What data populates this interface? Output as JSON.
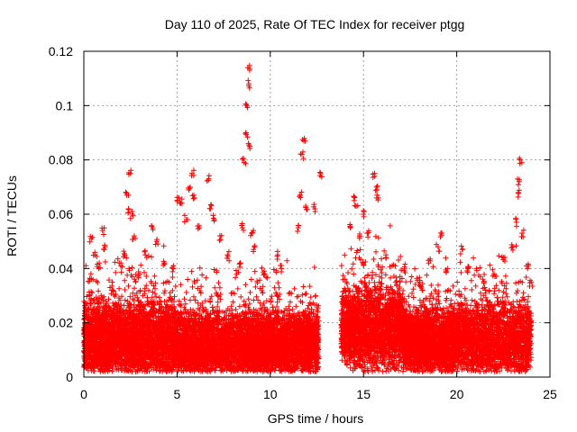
{
  "chart_data": {
    "type": "scatter",
    "title": "Day 110 of 2025, Rate Of TEC Index for receiver ptgg",
    "xlabel": "GPS time / hours",
    "ylabel": "ROTI / TECUs",
    "xlim": [
      0,
      25
    ],
    "ylim": [
      0,
      0.12
    ],
    "xticks": [
      "0",
      "5",
      "10",
      "15",
      "20",
      "25"
    ],
    "yticks": [
      "0",
      "0.02",
      "0.04",
      "0.06",
      "0.08",
      "0.1",
      "0.12"
    ],
    "grid": true,
    "marker": "+",
    "color": "#ff0000",
    "data_gap_hours": [
      12.6,
      13.8
    ],
    "series": [
      {
        "points": [
          [
            0.3,
            0.03
          ],
          [
            0.4,
            0.051
          ],
          [
            0.6,
            0.045
          ],
          [
            0.8,
            0.04
          ],
          [
            1.0,
            0.054
          ],
          [
            1.1,
            0.047
          ],
          [
            1.5,
            0.032
          ],
          [
            1.9,
            0.042
          ],
          [
            2.2,
            0.045
          ],
          [
            2.3,
            0.067
          ],
          [
            2.4,
            0.062
          ],
          [
            2.5,
            0.075
          ],
          [
            2.6,
            0.06
          ],
          [
            2.7,
            0.052
          ],
          [
            3.0,
            0.038
          ],
          [
            3.3,
            0.045
          ],
          [
            3.7,
            0.055
          ],
          [
            3.9,
            0.05
          ],
          [
            4.3,
            0.042
          ],
          [
            4.8,
            0.04
          ],
          [
            5.1,
            0.066
          ],
          [
            5.2,
            0.064
          ],
          [
            5.5,
            0.058
          ],
          [
            5.7,
            0.07
          ],
          [
            5.8,
            0.075
          ],
          [
            5.9,
            0.067
          ],
          [
            6.2,
            0.055
          ],
          [
            6.7,
            0.073
          ],
          [
            6.8,
            0.062
          ],
          [
            7.0,
            0.058
          ],
          [
            7.3,
            0.052
          ],
          [
            7.7,
            0.045
          ],
          [
            8.2,
            0.038
          ],
          [
            8.4,
            0.042
          ],
          [
            8.5,
            0.055
          ],
          [
            8.6,
            0.079
          ],
          [
            8.7,
            0.09
          ],
          [
            8.75,
            0.1
          ],
          [
            8.8,
            0.114
          ],
          [
            8.85,
            0.108
          ],
          [
            8.9,
            0.085
          ],
          [
            9.0,
            0.053
          ],
          [
            9.1,
            0.047
          ],
          [
            9.7,
            0.038
          ],
          [
            10.4,
            0.045
          ],
          [
            10.6,
            0.04
          ],
          [
            11.5,
            0.055
          ],
          [
            11.6,
            0.067
          ],
          [
            11.7,
            0.082
          ],
          [
            11.8,
            0.087
          ],
          [
            11.9,
            0.063
          ],
          [
            12.4,
            0.062
          ],
          [
            12.7,
            0.075
          ],
          [
            14.3,
            0.055
          ],
          [
            14.5,
            0.065
          ],
          [
            14.6,
            0.063
          ],
          [
            14.8,
            0.052
          ],
          [
            15.0,
            0.06
          ],
          [
            15.2,
            0.053
          ],
          [
            15.6,
            0.075
          ],
          [
            15.7,
            0.07
          ],
          [
            15.8,
            0.066
          ],
          [
            16.2,
            0.045
          ],
          [
            17.2,
            0.04
          ],
          [
            18.0,
            0.035
          ],
          [
            18.5,
            0.042
          ],
          [
            19.0,
            0.048
          ],
          [
            19.2,
            0.053
          ],
          [
            19.5,
            0.04
          ],
          [
            20.3,
            0.047
          ],
          [
            20.6,
            0.04
          ],
          [
            21.5,
            0.033
          ],
          [
            22.0,
            0.038
          ],
          [
            22.5,
            0.044
          ],
          [
            23.0,
            0.048
          ],
          [
            23.2,
            0.057
          ],
          [
            23.3,
            0.068
          ],
          [
            23.35,
            0.072
          ],
          [
            23.4,
            0.08
          ],
          [
            23.5,
            0.053
          ],
          [
            23.8,
            0.04
          ],
          [
            24.0,
            0.035
          ]
        ],
        "dense_bands": [
          {
            "x": [
              0.0,
              1.5
            ],
            "y_median": 0.013,
            "y_spread": 0.009
          },
          {
            "x": [
              1.5,
              5.0
            ],
            "y_median": 0.014,
            "y_spread": 0.01
          },
          {
            "x": [
              5.0,
              8.5
            ],
            "y_median": 0.012,
            "y_spread": 0.009
          },
          {
            "x": [
              8.5,
              11.5
            ],
            "y_median": 0.012,
            "y_spread": 0.009
          },
          {
            "x": [
              11.5,
              12.6
            ],
            "y_median": 0.013,
            "y_spread": 0.008
          },
          {
            "x": [
              13.8,
              17.1
            ],
            "y_median": 0.018,
            "y_spread": 0.011
          },
          {
            "x": [
              17.1,
              20.0
            ],
            "y_median": 0.013,
            "y_spread": 0.009
          },
          {
            "x": [
              20.0,
              24.0
            ],
            "y_median": 0.014,
            "y_spread": 0.01
          }
        ]
      }
    ]
  }
}
